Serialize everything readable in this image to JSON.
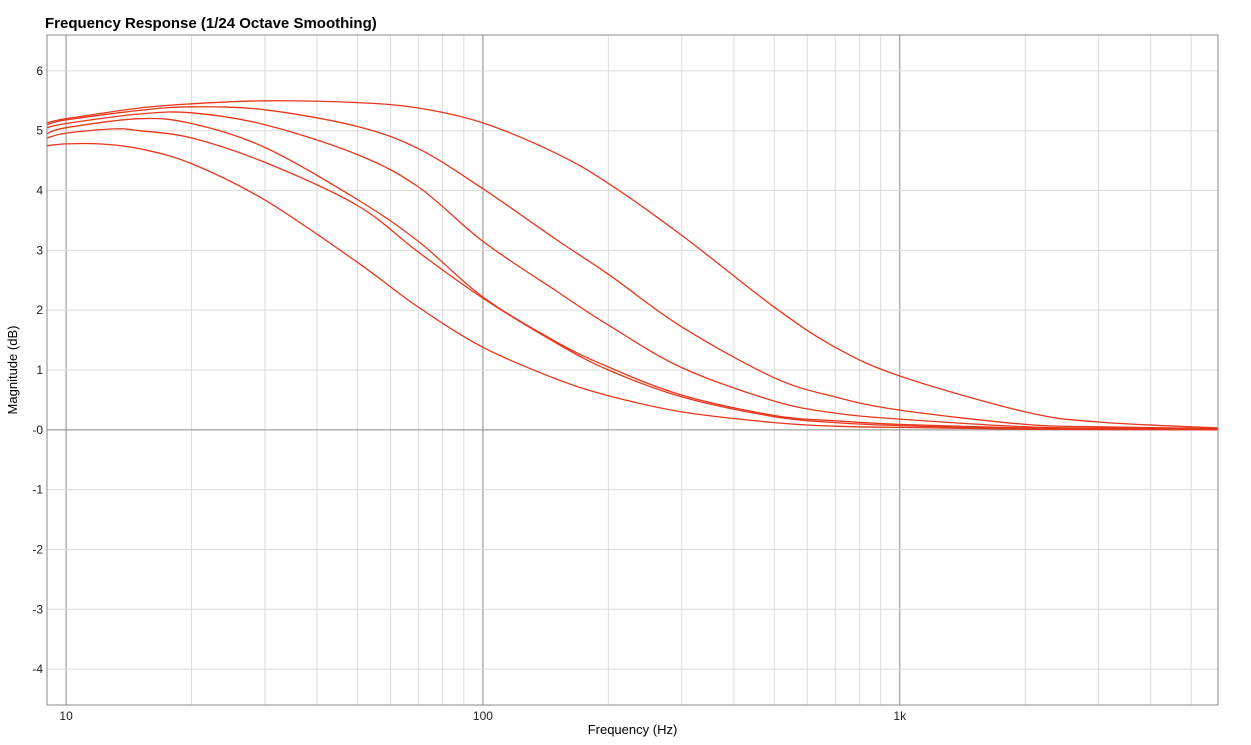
{
  "chart_data": {
    "type": "line",
    "title": "Frequency Response (1/24 Octave Smoothing)",
    "xlabel": "Frequency (Hz)",
    "ylabel": "Magnitude (dB)",
    "x_scale": "log",
    "xlim": [
      9.0,
      5800
    ],
    "ylim": [
      -4.6,
      6.6
    ],
    "x_ticks": [
      {
        "value": 10,
        "label": "10"
      },
      {
        "value": 100,
        "label": "100"
      },
      {
        "value": 1000,
        "label": "1k"
      }
    ],
    "y_ticks": [
      {
        "value": 6,
        "label": "6"
      },
      {
        "value": 5,
        "label": "5"
      },
      {
        "value": 4,
        "label": "4"
      },
      {
        "value": 3,
        "label": "3"
      },
      {
        "value": 2,
        "label": "2"
      },
      {
        "value": 1,
        "label": "1"
      },
      {
        "value": 0,
        "label": "-0"
      },
      {
        "value": -1,
        "label": "-1"
      },
      {
        "value": -2,
        "label": "-2"
      },
      {
        "value": -3,
        "label": "-3"
      },
      {
        "value": -4,
        "label": "-4"
      }
    ],
    "grid": true,
    "line_color": "#e8361c",
    "series": [
      {
        "x": [
          9,
          10,
          15,
          20,
          30,
          50,
          70,
          100,
          150,
          200,
          300,
          500,
          700,
          1000,
          2000,
          3000,
          5800
        ],
        "values": [
          5.13,
          5.2,
          5.38,
          5.45,
          5.5,
          5.47,
          5.38,
          5.13,
          4.62,
          4.12,
          3.25,
          2.05,
          1.38,
          0.9,
          0.3,
          0.13,
          0.03
        ]
      },
      {
        "x": [
          9,
          10,
          15,
          20,
          30,
          50,
          70,
          100,
          150,
          200,
          300,
          500,
          700,
          1000,
          2000,
          3000,
          5800
        ],
        "values": [
          5.1,
          5.18,
          5.34,
          5.4,
          5.35,
          5.07,
          4.7,
          4.03,
          3.18,
          2.6,
          1.72,
          0.87,
          0.55,
          0.33,
          0.09,
          0.05,
          0.02
        ]
      },
      {
        "x": [
          9,
          10,
          15,
          20,
          30,
          50,
          70,
          100,
          150,
          200,
          300,
          500,
          700,
          1000,
          2000,
          3000,
          5800
        ],
        "values": [
          5.05,
          5.12,
          5.28,
          5.3,
          5.1,
          4.6,
          4.06,
          3.15,
          2.32,
          1.75,
          1.04,
          0.48,
          0.28,
          0.18,
          0.05,
          0.03,
          0.01
        ]
      },
      {
        "x": [
          9,
          10,
          15,
          20,
          30,
          50,
          70,
          100,
          150,
          200,
          300,
          500,
          700,
          1000,
          2000,
          3000,
          5800
        ],
        "values": [
          4.95,
          5.05,
          5.2,
          5.12,
          4.72,
          3.85,
          3.15,
          2.22,
          1.47,
          1.05,
          0.58,
          0.24,
          0.15,
          0.09,
          0.03,
          0.02,
          0.01
        ]
      },
      {
        "x": [
          9,
          10,
          13,
          15,
          20,
          30,
          50,
          70,
          100,
          150,
          200,
          300,
          500,
          700,
          1000,
          2000,
          5800
        ],
        "values": [
          4.88,
          4.96,
          5.03,
          5.0,
          4.88,
          4.47,
          3.75,
          2.97,
          2.2,
          1.45,
          1.0,
          0.55,
          0.22,
          0.12,
          0.07,
          0.02,
          0.01
        ]
      },
      {
        "x": [
          9,
          10,
          12,
          15,
          20,
          30,
          50,
          70,
          100,
          150,
          200,
          300,
          500,
          700,
          1000,
          2000,
          5800
        ],
        "values": [
          4.75,
          4.78,
          4.78,
          4.7,
          4.45,
          3.84,
          2.8,
          2.05,
          1.38,
          0.85,
          0.57,
          0.3,
          0.12,
          0.06,
          0.04,
          0.01,
          0.0
        ]
      }
    ]
  }
}
